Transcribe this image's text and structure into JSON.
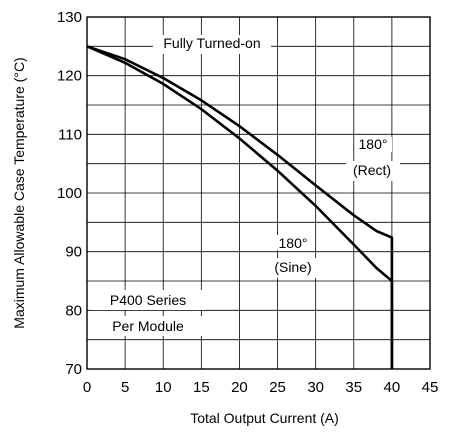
{
  "chart_data": {
    "type": "line",
    "xlabel": "Total Output Current (A)",
    "ylabel": "Maximum Allowable Case Temperature (°C)",
    "xlim": [
      0,
      45
    ],
    "ylim": [
      70,
      130
    ],
    "x_ticks": [
      "0",
      "5",
      "10",
      "15",
      "20",
      "25",
      "30",
      "35",
      "40",
      "45"
    ],
    "y_ticks": [
      "70",
      "80",
      "90",
      "100",
      "110",
      "120",
      "130"
    ],
    "x_tick_values": [
      0,
      5,
      10,
      15,
      20,
      25,
      30,
      35,
      40,
      45
    ],
    "y_tick_values": [
      70,
      80,
      90,
      100,
      110,
      120,
      130
    ],
    "grid": true,
    "series": [
      {
        "name": "180° (Rect)",
        "line_color": "#000000",
        "points": [
          [
            0,
            125
          ],
          [
            5,
            122.8
          ],
          [
            10,
            119.6
          ],
          [
            15,
            115.8
          ],
          [
            20,
            111.4
          ],
          [
            25,
            106.5
          ],
          [
            30,
            101.3
          ],
          [
            35,
            96.2
          ],
          [
            38,
            93.5
          ],
          [
            40,
            92.4
          ],
          [
            40,
            70
          ]
        ]
      },
      {
        "name": "180° (Sine)",
        "line_color": "#000000",
        "points": [
          [
            0,
            125
          ],
          [
            5,
            122.2
          ],
          [
            10,
            118.6
          ],
          [
            15,
            114.3
          ],
          [
            20,
            109.3
          ],
          [
            25,
            103.8
          ],
          [
            30,
            97.8
          ],
          [
            35,
            91.2
          ],
          [
            38,
            87.2
          ],
          [
            40,
            85
          ],
          [
            40,
            70
          ]
        ]
      }
    ],
    "annotations": [
      {
        "id": "fully",
        "text": "Fully  Turned-on"
      },
      {
        "id": "rect1",
        "text": "180°"
      },
      {
        "id": "rect2",
        "text": "(Rect)"
      },
      {
        "id": "sine1",
        "text": "180°"
      },
      {
        "id": "sine2",
        "text": "(Sine)"
      },
      {
        "id": "series1",
        "text": "P400  Series"
      },
      {
        "id": "series2",
        "text": "Per  Module"
      }
    ]
  }
}
